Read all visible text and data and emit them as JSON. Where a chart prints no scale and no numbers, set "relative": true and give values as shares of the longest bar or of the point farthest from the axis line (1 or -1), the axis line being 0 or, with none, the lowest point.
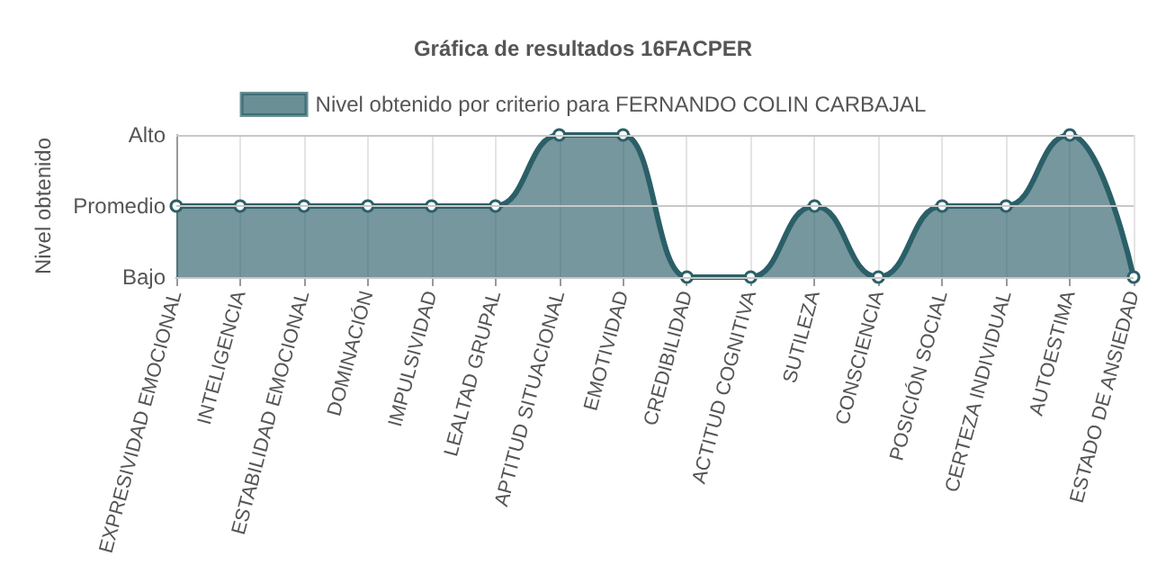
{
  "chart_data": {
    "type": "area",
    "title": "Gráfica de resultados 16FACPER",
    "ylabel": "Nivel obtenido",
    "categories": [
      "EXPRESIVIDAD EMOCIONAL",
      "INTELIGENCIA",
      "ESTABILIDAD EMOCIONAL",
      "DOMINACIÓN",
      "IMPULSIVIDAD",
      "LEALTAD GRUPAL",
      "APTITUD SITUACIONAL",
      "EMOTIVIDAD",
      "CREDIBILIDAD",
      "ACTITUD COGNITIVA",
      "SUTILEZA",
      "CONSCIENCIA",
      "POSICIÓN SOCIAL",
      "CERTEZA INDIVIDUAL",
      "AUTOESTIMA",
      "ESTADO DE ANSIEDAD"
    ],
    "series": [
      {
        "name": "Nivel obtenido por criterio para FERNANDO COLIN CARBAJAL",
        "color": "#2b5f68",
        "values": [
          0.5,
          0.5,
          0.5,
          0.5,
          0.5,
          0.5,
          1,
          1,
          0,
          0,
          0.5,
          0,
          0.5,
          0.5,
          1,
          0
        ]
      }
    ],
    "relative": true,
    "ref_lines": [
      {
        "axis": "y",
        "value": 0,
        "label": "Bajo",
        "color": "#c8c8c8"
      },
      {
        "axis": "y",
        "value": 0.5,
        "label": "Promedio",
        "color": "#c8c8c8"
      },
      {
        "axis": "y",
        "value": 1,
        "label": "Alto",
        "color": "#c8c8c8"
      }
    ],
    "grid": "x",
    "legend": "top",
    "marker": "circle",
    "line_style": "solid"
  }
}
